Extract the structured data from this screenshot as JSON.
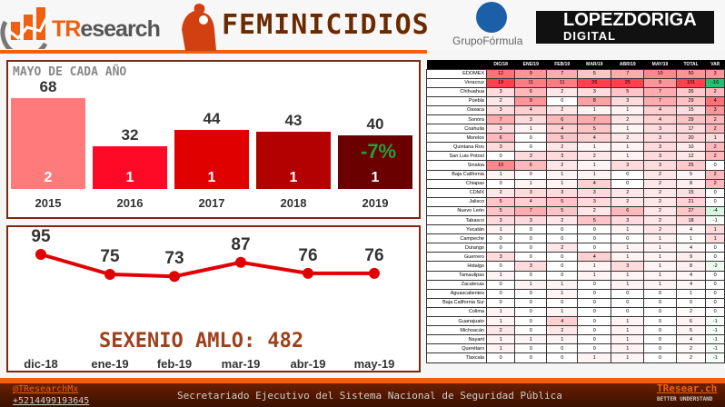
{
  "header": {
    "brand_prefix": "TR",
    "brand_suffix": "esearch",
    "title": "FEMINICIDIOS",
    "partner1": "GrupoFórmula",
    "partner2_line1": "LOPEZDORIGA",
    "partner2_line2": "DIGITAL",
    "accent": "#f06010"
  },
  "yearly": {
    "title": "MAYO DE CADA AÑO",
    "bars": [
      {
        "year": "2015",
        "value": 68,
        "inner": "2",
        "color": "#ff7b7b"
      },
      {
        "year": "2016",
        "value": 32,
        "inner": "1",
        "color": "#ff0a26"
      },
      {
        "year": "2017",
        "value": 44,
        "inner": "1",
        "color": "#e00000"
      },
      {
        "year": "2018",
        "value": 43,
        "inner": "1",
        "color": "#b30000"
      },
      {
        "year": "2019",
        "value": 40,
        "inner": "1",
        "color": "#6b0000"
      }
    ],
    "change": "-7%"
  },
  "monthly": {
    "points": [
      {
        "label": "dic-18",
        "value": 95
      },
      {
        "label": "ene-19",
        "value": 75
      },
      {
        "label": "feb-19",
        "value": 73
      },
      {
        "label": "mar-19",
        "value": 87
      },
      {
        "label": "abr-19",
        "value": 76
      },
      {
        "label": "may-19",
        "value": 76
      }
    ],
    "total_text": "SEXENIO AMLO: 482",
    "line_color": "#e00000"
  },
  "table": {
    "headers": [
      "",
      "DIC/18",
      "ENE/19",
      "FEB/19",
      "MAR/19",
      "ABR/19",
      "MAY/19",
      "TOTAL",
      "VAR"
    ],
    "rows": [
      [
        "EDOMEX",
        12,
        9,
        7,
        5,
        7,
        10,
        50,
        3
      ],
      [
        "Veracruz",
        19,
        11,
        11,
        26,
        25,
        9,
        101,
        -16
      ],
      [
        "Chihuahua",
        3,
        6,
        2,
        3,
        5,
        7,
        26,
        2
      ],
      [
        "Puebla",
        2,
        9,
        0,
        8,
        3,
        7,
        29,
        4
      ],
      [
        "Oaxaca",
        3,
        4,
        2,
        1,
        1,
        4,
        15,
        3
      ],
      [
        "Sonora",
        7,
        3,
        6,
        7,
        2,
        4,
        29,
        2
      ],
      [
        "Coahuila",
        3,
        1,
        4,
        5,
        1,
        3,
        17,
        2
      ],
      [
        "Morelos",
        6,
        0,
        5,
        4,
        2,
        3,
        20,
        1
      ],
      [
        "Quintana Roo",
        3,
        0,
        2,
        1,
        1,
        3,
        10,
        2
      ],
      [
        "San Luis Potosí",
        0,
        3,
        3,
        2,
        1,
        3,
        12,
        2
      ],
      [
        "Sinaloa",
        10,
        6,
        2,
        1,
        3,
        3,
        25,
        0
      ],
      [
        "Baja California",
        1,
        0,
        1,
        1,
        0,
        2,
        5,
        2
      ],
      [
        "Chiapas",
        0,
        1,
        1,
        4,
        0,
        2,
        8,
        2
      ],
      [
        "CDMX",
        2,
        3,
        3,
        3,
        2,
        2,
        15,
        0
      ],
      [
        "Jalisco",
        5,
        4,
        5,
        3,
        2,
        2,
        21,
        0
      ],
      [
        "Nuevo León",
        5,
        7,
        5,
        2,
        6,
        2,
        27,
        -4
      ],
      [
        "Tabasco",
        3,
        3,
        2,
        5,
        3,
        2,
        18,
        -1
      ],
      [
        "Yucatán",
        1,
        0,
        0,
        0,
        1,
        2,
        4,
        1
      ],
      [
        "Campeche",
        0,
        0,
        0,
        0,
        0,
        1,
        1,
        1
      ],
      [
        "Durango",
        0,
        0,
        2,
        0,
        1,
        1,
        4,
        0
      ],
      [
        "Guerrero",
        3,
        0,
        0,
        4,
        1,
        1,
        9,
        0
      ],
      [
        "Hidalgo",
        0,
        3,
        0,
        1,
        3,
        1,
        8,
        -2
      ],
      [
        "Tamaulipas",
        1,
        0,
        0,
        1,
        1,
        1,
        4,
        0
      ],
      [
        "Zacatecas",
        0,
        1,
        1,
        0,
        1,
        1,
        4,
        0
      ],
      [
        "Aguascalientes",
        0,
        0,
        1,
        0,
        0,
        0,
        1,
        0
      ],
      [
        "Baja California Sur",
        0,
        0,
        0,
        0,
        0,
        0,
        0,
        0
      ],
      [
        "Colima",
        1,
        0,
        1,
        0,
        0,
        0,
        2,
        0
      ],
      [
        "Guanajuato",
        1,
        0,
        4,
        0,
        1,
        0,
        6,
        -1
      ],
      [
        "Michoacán",
        2,
        0,
        2,
        0,
        1,
        0,
        5,
        -1
      ],
      [
        "Nayarit",
        1,
        1,
        1,
        0,
        1,
        0,
        4,
        -1
      ],
      [
        "Querétaro",
        1,
        0,
        0,
        0,
        1,
        0,
        2,
        -1
      ],
      [
        "Tlaxcala",
        0,
        0,
        0,
        1,
        1,
        0,
        2,
        -1
      ]
    ]
  },
  "footer": {
    "twitter": "@TResearchMx",
    "phone": "+5214499193645",
    "source": "Secretariado Ejecutivo del Sistema Nacional de Seguridad Pública",
    "site": "TResear.ch",
    "tagline": "BETTER UNDERSTAND"
  }
}
